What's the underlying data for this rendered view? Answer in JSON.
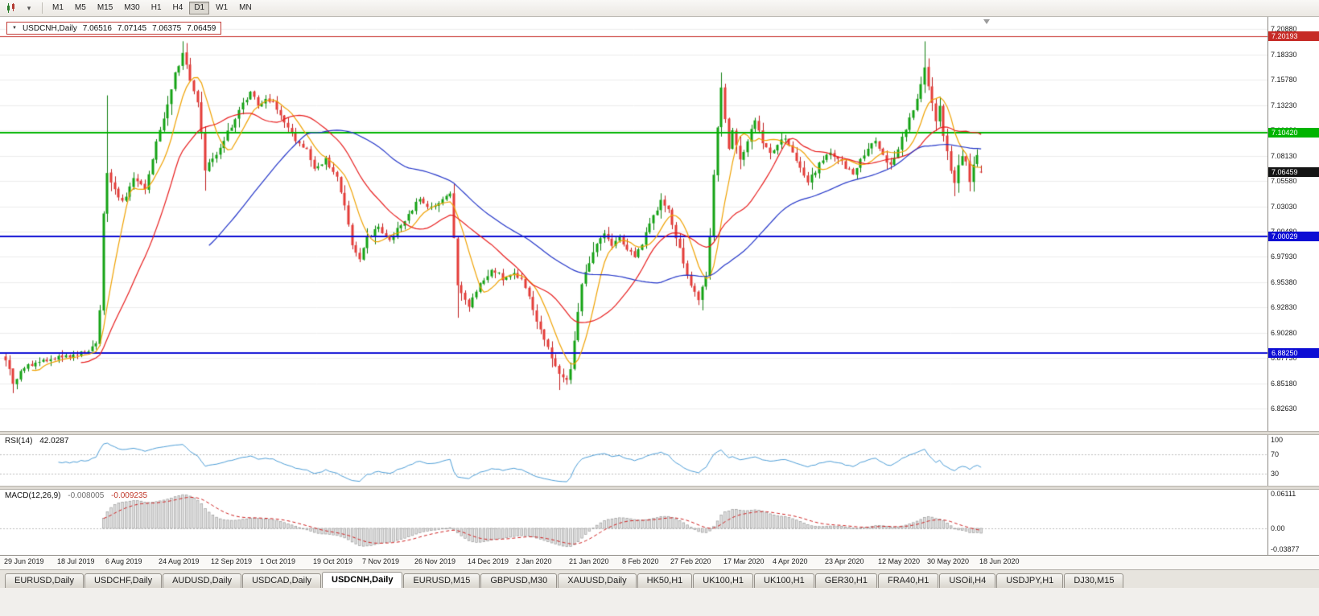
{
  "toolbar": {
    "timeframes": [
      "M1",
      "M5",
      "M15",
      "M30",
      "H1",
      "H4",
      "D1",
      "W1",
      "MN"
    ],
    "active_timeframe": "D1"
  },
  "chart": {
    "symbol_bar": {
      "symbol": "USDCNH,Daily",
      "open": "7.06516",
      "high": "7.07145",
      "low": "7.06375",
      "close": "7.06459"
    }
  },
  "indicators": {
    "rsi": {
      "label": "RSI(14)",
      "value": "42.0287",
      "axis_labels": [
        "100",
        "70",
        "30"
      ]
    },
    "macd": {
      "label": "MACD(12,26,9)",
      "main_value": "-0.008005",
      "signal_value": "-0.009235",
      "axis_labels": [
        "0.06111",
        "0.00",
        "-0.03877"
      ]
    }
  },
  "bottom_tabs": {
    "active_index": 4,
    "items": [
      "EURUSD,Daily",
      "USDCHF,Daily",
      "AUDUSD,Daily",
      "USDCAD,Daily",
      "USDCNH,Daily",
      "EURUSD,M15",
      "GBPUSD,M30",
      "XAUUSD,Daily",
      "HK50,H1",
      "UK100,H1",
      "UK100,H1",
      "GER30,H1",
      "FRA40,H1",
      "USOil,H4",
      "USDJPY,H1",
      "DJ30,M15"
    ],
    "active_label": "USDCNH,Daily"
  },
  "chart_data": {
    "type": "candlestick",
    "symbol": "USDCNH",
    "timeframe": "Daily",
    "num_bars": 260,
    "visible_price_range": {
      "top": 7.2162,
      "bottom": 6.8039
    },
    "last_bar": {
      "open": 7.06516,
      "high": 7.07145,
      "low": 7.06375,
      "close": 7.06459
    },
    "price_axis_ticks": [
      "7.20880",
      "7.18330",
      "7.15780",
      "7.13230",
      "7.10680",
      "7.08130",
      "7.05580",
      "7.03030",
      "7.00480",
      "6.97930",
      "6.95380",
      "6.92830",
      "6.90280",
      "6.87730",
      "6.85180",
      "6.82630"
    ],
    "date_labels": [
      "29 Jun 2019",
      "18 Jul 2019",
      "6 Aug 2019",
      "24 Aug 2019",
      "12 Sep 2019",
      "1 Oct 2019",
      "19 Oct 2019",
      "7 Nov 2019",
      "26 Nov 2019",
      "14 Dec 2019",
      "2 Jan 2020",
      "21 Jan 2020",
      "8 Feb 2020",
      "27 Feb 2020",
      "17 Mar 2020",
      "4 Apr 2020",
      "23 Apr 2020",
      "12 May 2020",
      "30 May 2020",
      "18 Jun 2020"
    ],
    "horizontal_lines": [
      {
        "price": 7.20193,
        "label": "7.20193",
        "color": "#c62b26",
        "thickness": 1
      },
      {
        "price": 7.1042,
        "label": "7.10420",
        "color": "#00b400",
        "thickness": 2
      },
      {
        "price": 7.00029,
        "label": "7.00029",
        "color": "#0d0dd4",
        "thickness": 2
      },
      {
        "price": 6.8825,
        "label": "6.88250",
        "color": "#0d0dd4",
        "thickness": 2
      }
    ],
    "current_price": {
      "price": 7.06459,
      "label": "7.06459",
      "tag_color": "#141414"
    },
    "moving_averages": [
      {
        "period": 8,
        "color": "#f0a202"
      },
      {
        "period": 21,
        "color": "#e81e1e"
      },
      {
        "period": 55,
        "color": "#2436c9"
      }
    ],
    "candle_colors": {
      "up": "#13a313",
      "up_wick": "#0e7e0e",
      "down": "#e43c38",
      "down_wick": "#bf1f1f"
    },
    "rsi": {
      "period": 14,
      "levels": [
        70,
        30
      ],
      "color": "#4f9fd8",
      "last_value": 42.0287
    },
    "macd": {
      "fast": 12,
      "slow": 26,
      "signal": 9,
      "histogram_color": "#9a9a9a",
      "signal_color": "#cf2222",
      "last_main": -0.008005,
      "last_signal": -0.009235
    },
    "close_keypoints": [
      [
        0,
        6.876
      ],
      [
        2,
        6.853
      ],
      [
        5,
        6.868
      ],
      [
        10,
        6.874
      ],
      [
        14,
        6.879
      ],
      [
        20,
        6.882
      ],
      [
        24,
        6.89
      ],
      [
        25,
        6.928
      ],
      [
        26,
        7.022
      ],
      [
        27,
        7.062
      ],
      [
        29,
        7.046
      ],
      [
        31,
        7.034
      ],
      [
        34,
        7.058
      ],
      [
        37,
        7.047
      ],
      [
        40,
        7.094
      ],
      [
        43,
        7.134
      ],
      [
        45,
        7.163
      ],
      [
        47,
        7.183
      ],
      [
        49,
        7.158
      ],
      [
        51,
        7.136
      ],
      [
        53,
        7.068
      ],
      [
        56,
        7.083
      ],
      [
        59,
        7.104
      ],
      [
        62,
        7.127
      ],
      [
        65,
        7.146
      ],
      [
        67,
        7.131
      ],
      [
        69,
        7.141
      ],
      [
        71,
        7.134
      ],
      [
        74,
        7.114
      ],
      [
        77,
        7.098
      ],
      [
        80,
        7.086
      ],
      [
        82,
        7.069
      ],
      [
        85,
        7.078
      ],
      [
        88,
        7.058
      ],
      [
        90,
        7.031
      ],
      [
        92,
        6.991
      ],
      [
        94,
        6.976
      ],
      [
        96,
        6.998
      ],
      [
        99,
        7.008
      ],
      [
        102,
        6.996
      ],
      [
        105,
        7.012
      ],
      [
        108,
        7.028
      ],
      [
        110,
        7.038
      ],
      [
        113,
        7.028
      ],
      [
        116,
        7.036
      ],
      [
        118,
        7.041
      ],
      [
        119,
        7.0
      ],
      [
        120,
        6.952
      ],
      [
        123,
        6.929
      ],
      [
        126,
        6.951
      ],
      [
        129,
        6.967
      ],
      [
        132,
        6.958
      ],
      [
        135,
        6.962
      ],
      [
        137,
        6.957
      ],
      [
        139,
        6.938
      ],
      [
        141,
        6.916
      ],
      [
        143,
        6.896
      ],
      [
        145,
        6.879
      ],
      [
        147,
        6.86
      ],
      [
        149,
        6.853
      ],
      [
        150,
        6.866
      ],
      [
        151,
        6.896
      ],
      [
        152,
        6.926
      ],
      [
        153,
        6.951
      ],
      [
        155,
        6.973
      ],
      [
        157,
        6.993
      ],
      [
        159,
        7.003
      ],
      [
        161,
        6.991
      ],
      [
        163,
        6.999
      ],
      [
        165,
        6.986
      ],
      [
        167,
        6.979
      ],
      [
        169,
        6.993
      ],
      [
        171,
        7.011
      ],
      [
        174,
        7.036
      ],
      [
        176,
        7.027
      ],
      [
        178,
        6.999
      ],
      [
        180,
        6.973
      ],
      [
        182,
        6.951
      ],
      [
        184,
        6.934
      ],
      [
        186,
        6.962
      ],
      [
        187,
        7.002
      ],
      [
        188,
        7.062
      ],
      [
        189,
        7.112
      ],
      [
        190,
        7.152
      ],
      [
        191,
        7.118
      ],
      [
        192,
        7.088
      ],
      [
        193,
        7.106
      ],
      [
        195,
        7.076
      ],
      [
        197,
        7.096
      ],
      [
        199,
        7.116
      ],
      [
        201,
        7.094
      ],
      [
        203,
        7.082
      ],
      [
        205,
        7.091
      ],
      [
        207,
        7.101
      ],
      [
        209,
        7.086
      ],
      [
        211,
        7.068
      ],
      [
        213,
        7.056
      ],
      [
        215,
        7.066
      ],
      [
        217,
        7.079
      ],
      [
        219,
        7.086
      ],
      [
        221,
        7.079
      ],
      [
        223,
        7.068
      ],
      [
        225,
        7.063
      ],
      [
        227,
        7.076
      ],
      [
        229,
        7.089
      ],
      [
        231,
        7.096
      ],
      [
        233,
        7.082
      ],
      [
        235,
        7.071
      ],
      [
        237,
        7.089
      ],
      [
        239,
        7.107
      ],
      [
        241,
        7.128
      ],
      [
        243,
        7.152
      ],
      [
        244,
        7.172
      ],
      [
        245,
        7.15
      ],
      [
        246,
        7.132
      ],
      [
        247,
        7.118
      ],
      [
        248,
        7.13
      ],
      [
        249,
        7.102
      ],
      [
        250,
        7.085
      ],
      [
        251,
        7.066
      ],
      [
        252,
        7.052
      ],
      [
        253,
        7.07
      ],
      [
        254,
        7.082
      ],
      [
        255,
        7.074
      ],
      [
        256,
        7.057
      ],
      [
        257,
        7.074
      ],
      [
        258,
        7.082
      ],
      [
        259,
        7.0646
      ]
    ],
    "spikes": [
      {
        "i": 27,
        "high": 7.142
      },
      {
        "i": 47,
        "high": 7.1965
      },
      {
        "i": 53,
        "low": 7.046
      },
      {
        "i": 120,
        "low": 6.918
      },
      {
        "i": 147,
        "low": 6.8452
      },
      {
        "i": 190,
        "high": 7.165
      },
      {
        "i": 244,
        "high": 7.1964
      },
      {
        "i": 252,
        "low": 7.0405
      }
    ]
  }
}
